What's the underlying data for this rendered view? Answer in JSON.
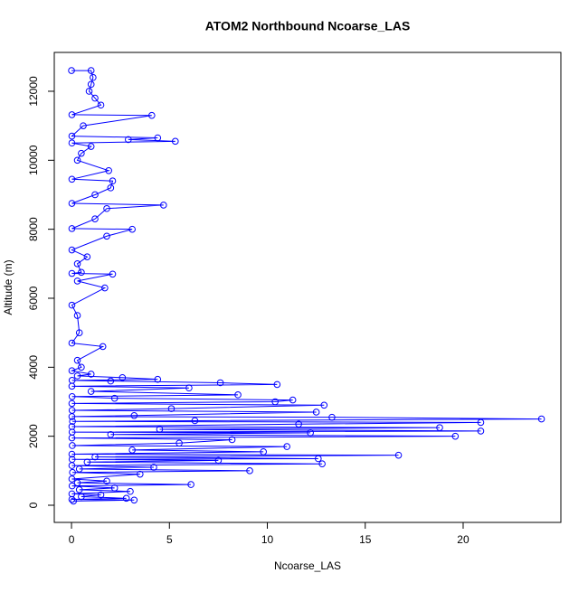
{
  "chart_data": {
    "type": "line",
    "title": "ATOM2 Northbound Ncoarse_LAS",
    "x_label": "Ncoarse_LAS",
    "y_label": "Altitude (m)",
    "xlim": [
      -0.88,
      24.99
    ],
    "ylim": [
      -498,
      13126
    ],
    "xticks": [
      0,
      5,
      10,
      15,
      20
    ],
    "yticks": [
      0,
      2000,
      4000,
      6000,
      8000,
      10000,
      12000
    ],
    "series": [
      {
        "name": "Ncoarse_LAS",
        "color": "#0000ff",
        "x": [
          0.1,
          3.2,
          0.02,
          2.8,
          0.5,
          1.5,
          0.02,
          3.0,
          0.4,
          2.2,
          0.03,
          6.1,
          0.3,
          1.8,
          0.02,
          3.5,
          0.05,
          9.1,
          0.4,
          4.2,
          0.02,
          12.8,
          0.8,
          7.5,
          0.03,
          12.6,
          1.2,
          16.7,
          0.02,
          9.8,
          3.1,
          11.0,
          0.04,
          5.5,
          8.2,
          0.02,
          19.6,
          2.0,
          12.2,
          0.03,
          20.9,
          4.5,
          18.8,
          0.02,
          11.6,
          20.9,
          0.05,
          6.3,
          24.0,
          13.3,
          0.02,
          3.2,
          12.5,
          0.03,
          5.1,
          12.9,
          0.02,
          10.4,
          11.3,
          2.2,
          0.03,
          8.5,
          1.0,
          6.0,
          0.02,
          10.5,
          7.6,
          2.0,
          0.03,
          4.4,
          2.6,
          0.3,
          1.0,
          0.02,
          0.5,
          0.3,
          1.6,
          0.02,
          0.4,
          0.3,
          0.02,
          1.7,
          0.3,
          2.1,
          0.02,
          0.5,
          0.3,
          0.8,
          0.02,
          1.8,
          3.1,
          0.02,
          1.2,
          1.8,
          4.7,
          0.02,
          1.2,
          2.0,
          2.1,
          0.02,
          1.9,
          0.3,
          0.5,
          1.0,
          0.02,
          5.3,
          2.9,
          4.4,
          0.02,
          0.6,
          4.1,
          0.02,
          1.5,
          1.2,
          0.9,
          1.0,
          1.1,
          1.0,
          0.0
        ],
        "values": [
          120,
          150,
          170,
          200,
          250,
          300,
          330,
          400,
          450,
          500,
          560,
          600,
          650,
          700,
          760,
          900,
          950,
          1000,
          1050,
          1100,
          1150,
          1200,
          1250,
          1300,
          1330,
          1350,
          1400,
          1450,
          1480,
          1550,
          1600,
          1700,
          1730,
          1800,
          1900,
          1950,
          2000,
          2050,
          2100,
          2120,
          2150,
          2200,
          2250,
          2280,
          2350,
          2400,
          2430,
          2450,
          2500,
          2550,
          2570,
          2600,
          2700,
          2750,
          2800,
          2900,
          2950,
          3000,
          3050,
          3100,
          3150,
          3200,
          3300,
          3400,
          3450,
          3500,
          3550,
          3600,
          3620,
          3650,
          3700,
          3750,
          3800,
          3900,
          4000,
          4200,
          4600,
          4700,
          5000,
          5500,
          5800,
          6300,
          6500,
          6700,
          6720,
          6750,
          7000,
          7200,
          7400,
          7800,
          8000,
          8020,
          8300,
          8600,
          8700,
          8750,
          9000,
          9200,
          9400,
          9450,
          9700,
          10000,
          10200,
          10400,
          10500,
          10550,
          10600,
          10650,
          10700,
          11000,
          11300,
          11320,
          11600,
          11800,
          12000,
          12200,
          12400,
          12600,
          12600
        ]
      }
    ]
  }
}
